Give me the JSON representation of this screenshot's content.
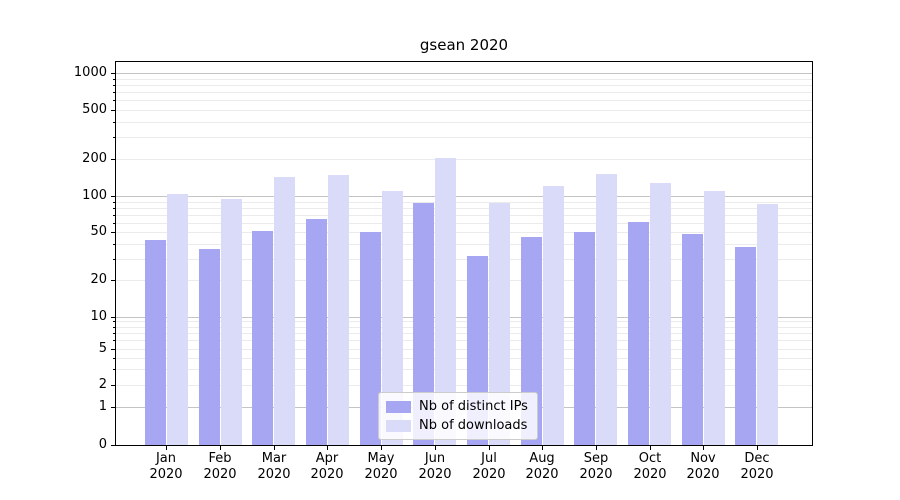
{
  "title": "gsean 2020",
  "chart_data": {
    "type": "bar",
    "title": "gsean 2020",
    "yscale": "symlog",
    "grid": true,
    "categories": [
      "Jan 2020",
      "Feb 2020",
      "Mar 2020",
      "Apr 2020",
      "May 2020",
      "Jun 2020",
      "Jul 2020",
      "Aug 2020",
      "Sep 2020",
      "Oct 2020",
      "Nov 2020",
      "Dec 2020"
    ],
    "month_labels": [
      "Jan",
      "Feb",
      "Mar",
      "Apr",
      "May",
      "Jun",
      "Jul",
      "Aug",
      "Sep",
      "Oct",
      "Nov",
      "Dec"
    ],
    "year_label": "2020",
    "series": [
      {
        "name": "Nb of distinct IPs",
        "color": "#a6a6f3",
        "values": [
          43,
          36,
          51,
          65,
          50,
          87,
          32,
          46,
          50,
          61,
          48,
          38
        ]
      },
      {
        "name": "Nb of downloads",
        "color": "#dadaf9",
        "values": [
          103,
          94,
          143,
          147,
          109,
          205,
          88,
          120,
          150,
          128,
          110,
          86
        ]
      }
    ],
    "y_axis": {
      "tick_labels": [
        0,
        1,
        2,
        5,
        10,
        20,
        50,
        100,
        200,
        500,
        1000
      ],
      "major_grid_values": [
        1,
        10,
        100,
        1000
      ],
      "minor_grid_values": [
        2,
        3,
        4,
        5,
        6,
        7,
        8,
        9,
        20,
        30,
        40,
        50,
        60,
        70,
        80,
        90,
        200,
        300,
        400,
        500,
        600,
        700,
        800,
        900
      ],
      "ylim": [
        0,
        1300
      ]
    },
    "legend_position": "lower center"
  },
  "legend": {
    "items": [
      {
        "label": "Nb of distinct IPs"
      },
      {
        "label": "Nb of downloads"
      }
    ]
  },
  "colors": {
    "major_grid": "#c4c4c4",
    "minor_grid": "#ebebeb",
    "spine": "#000000",
    "background": "#ffffff"
  }
}
